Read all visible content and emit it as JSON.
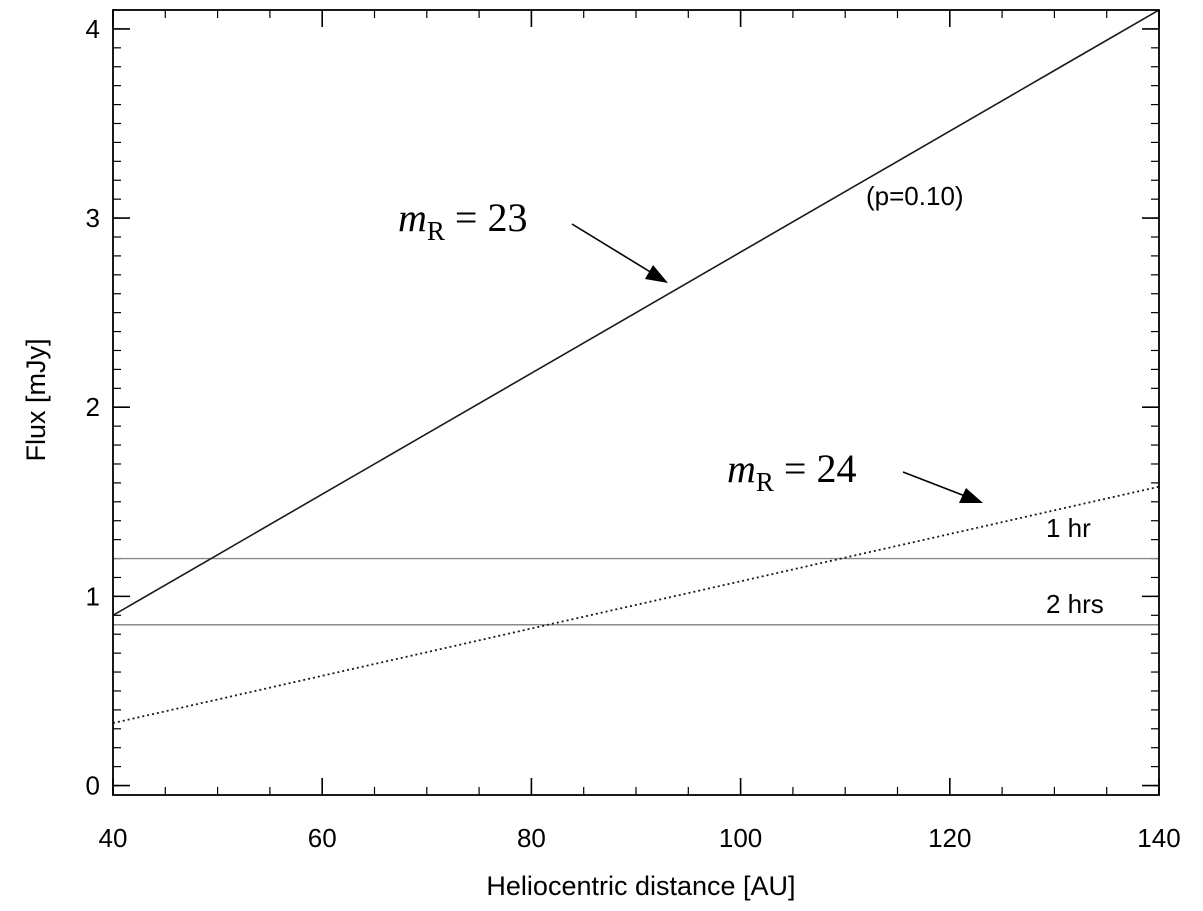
{
  "chart_data": {
    "type": "line",
    "xlabel": "Heliocentric distance [AU]",
    "ylabel": "Flux [mJy]",
    "xlim": [
      40,
      140
    ],
    "ylim": [
      -0.05,
      4.1
    ],
    "xticks": [
      40,
      60,
      80,
      100,
      120,
      140
    ],
    "yticks": [
      0,
      1,
      2,
      3,
      4
    ],
    "x_minor_step": 5,
    "y_minor_step": 0.1,
    "grid": false,
    "series": [
      {
        "label_prefix": "m",
        "label_subscript": "R",
        "label_suffix": " = 23",
        "style": "solid",
        "x": [
          40,
          50,
          60,
          70,
          80,
          90,
          100,
          110,
          120,
          130,
          140
        ],
        "y": [
          0.9,
          1.22,
          1.54,
          1.86,
          2.18,
          2.5,
          2.82,
          3.14,
          3.46,
          3.78,
          4.1
        ]
      },
      {
        "label_prefix": "m",
        "label_subscript": "R",
        "label_suffix": " = 24",
        "style": "dotted",
        "x": [
          40,
          50,
          60,
          70,
          80,
          90,
          100,
          110,
          120,
          130,
          140
        ],
        "y": [
          0.33,
          0.455,
          0.58,
          0.705,
          0.83,
          0.955,
          1.08,
          1.205,
          1.33,
          1.455,
          1.58
        ]
      }
    ],
    "hlines": [
      {
        "y": 1.2,
        "label": "1 hr"
      },
      {
        "y": 0.85,
        "label": "2 hrs"
      }
    ],
    "annotations": [
      {
        "text": "(p=0.10)"
      }
    ]
  }
}
